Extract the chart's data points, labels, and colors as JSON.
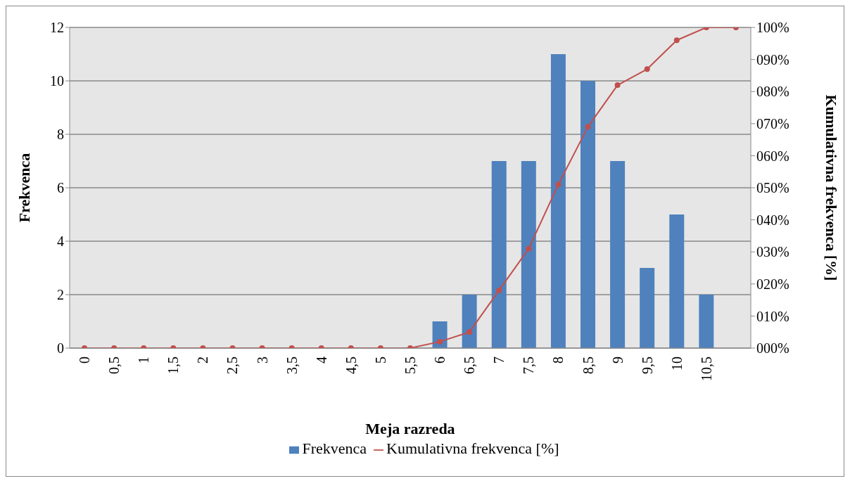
{
  "chart_data": {
    "type": "bar",
    "xlabel": "Meja razreda",
    "ylabel": "Frekvenca",
    "y2label": "Kumulativna frekvenca [%]",
    "categories": [
      "0",
      "0,5",
      "1",
      "1,5",
      "2",
      "2,5",
      "3",
      "3,5",
      "4",
      "4,5",
      "5",
      "5,5",
      "6",
      "6,5",
      "7",
      "7,5",
      "8",
      "8,5",
      "9",
      "9,5",
      "10",
      "10,5",
      null
    ],
    "series": [
      {
        "name": "Frekvenca",
        "color": "#4f81bd",
        "values": [
          0,
          0,
          0,
          0,
          0,
          0,
          0,
          0,
          0,
          0,
          0,
          0,
          1,
          2,
          7,
          7,
          11,
          10,
          7,
          3,
          5,
          2,
          null
        ]
      },
      {
        "name": "Kumulativna frekvenca [%]",
        "type": "line",
        "axis": "y2",
        "color": "#c0504d",
        "values": [
          0,
          0,
          0,
          0,
          0,
          0,
          0,
          0,
          0,
          0,
          0,
          0,
          2,
          5,
          18,
          31,
          51,
          69,
          82,
          87,
          96,
          100,
          100
        ]
      }
    ],
    "ylim": [
      0,
      12
    ],
    "yticks": [
      0,
      2,
      4,
      6,
      8,
      10,
      12
    ],
    "y2lim": [
      0,
      100
    ],
    "y2ticks": [
      {
        "value": 0,
        "label": "000%"
      },
      {
        "value": 10,
        "label": "010%"
      },
      {
        "value": 20,
        "label": "020%"
      },
      {
        "value": 30,
        "label": "030%"
      },
      {
        "value": 40,
        "label": "040%"
      },
      {
        "value": 50,
        "label": "050%"
      },
      {
        "value": 60,
        "label": "060%"
      },
      {
        "value": 70,
        "label": "070%"
      },
      {
        "value": 80,
        "label": "080%"
      },
      {
        "value": 90,
        "label": "090%"
      },
      {
        "value": 100,
        "label": "100%"
      }
    ],
    "grid": "y",
    "legend": "bottom",
    "marker": "circle"
  }
}
